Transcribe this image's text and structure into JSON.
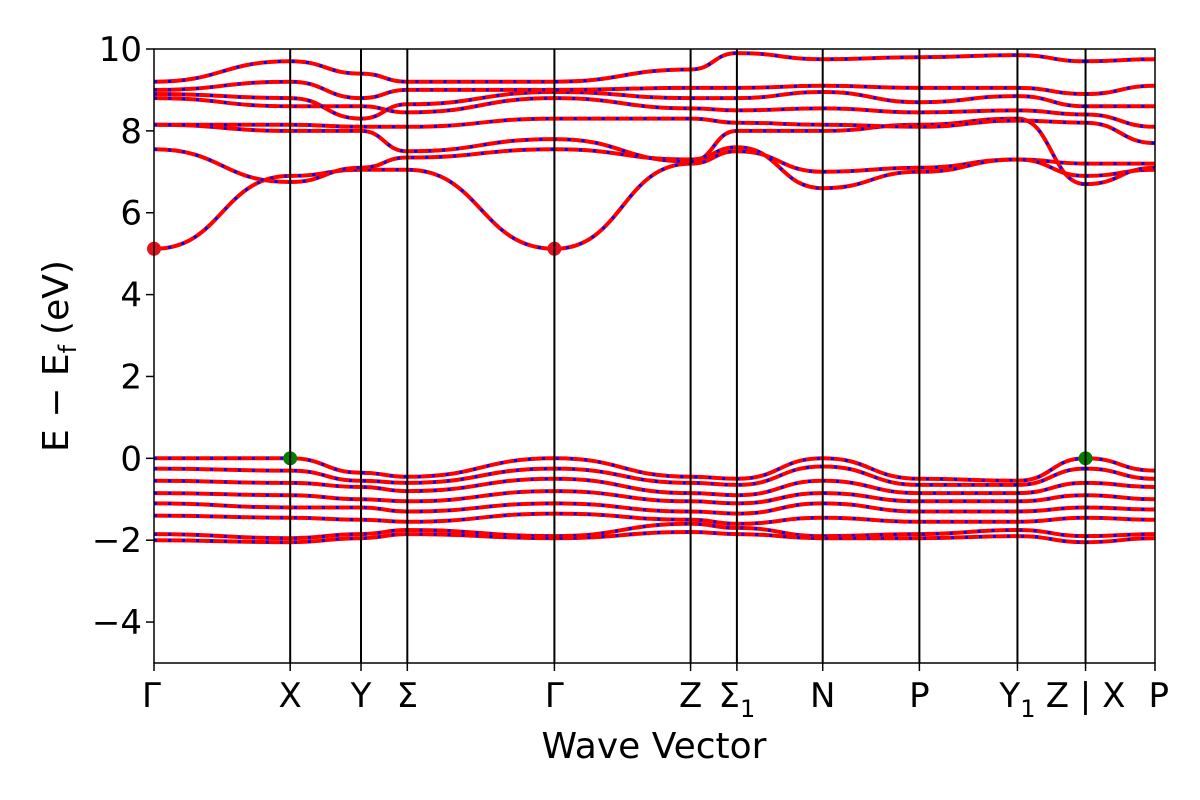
{
  "chart_data": {
    "type": "line",
    "title": "",
    "xlabel": "Wave Vector",
    "ylabel": "E − E",
    "ylabel_subscript": "f",
    "ylabel_unit": "(eV)",
    "ylim": [
      -5,
      10
    ],
    "yticks": [
      -4,
      -2,
      0,
      2,
      4,
      6,
      8,
      10
    ],
    "ytick_labels": [
      "−4",
      "−2",
      "0",
      "2",
      "4",
      "6",
      "8",
      "10"
    ],
    "xlim": [
      0,
      7.35
    ],
    "kpoints": [
      {
        "x": 0.0,
        "label": "Γ",
        "sub": ""
      },
      {
        "x": 1.0,
        "label": "X",
        "sub": ""
      },
      {
        "x": 1.52,
        "label": "Y",
        "sub": ""
      },
      {
        "x": 1.86,
        "label": "Σ",
        "sub": ""
      },
      {
        "x": 2.94,
        "label": "Γ",
        "sub": ""
      },
      {
        "x": 3.94,
        "label": "Z",
        "sub": ""
      },
      {
        "x": 4.28,
        "label": "Σ",
        "sub": "1"
      },
      {
        "x": 4.91,
        "label": "N",
        "sub": ""
      },
      {
        "x": 5.62,
        "label": "P",
        "sub": ""
      },
      {
        "x": 6.34,
        "label": "Y",
        "sub": "1"
      },
      {
        "x": 6.84,
        "label": "Z | X",
        "sub": ""
      },
      {
        "x": 7.35,
        "label": "P",
        "sub": ""
      }
    ],
    "band_break_x": 6.84,
    "colors": {
      "spin_up": "#ff0000",
      "spin_down": "#0000ff",
      "vbm": "#007f00",
      "cbm": "#e0141e"
    },
    "series": [
      {
        "values": [
          5.12,
          6.9,
          7.05,
          7.05,
          5.12,
          7.2,
          7.5,
          7.0,
          7.1,
          7.3,
          7.2,
          7.2
        ]
      },
      {
        "values": [
          7.55,
          6.75,
          7.1,
          7.35,
          7.55,
          7.3,
          7.6,
          6.6,
          7.0,
          7.3,
          6.9,
          7.05
        ]
      },
      {
        "values": [
          8.15,
          8.0,
          8.0,
          7.5,
          7.8,
          7.25,
          8.0,
          8.0,
          8.15,
          8.3,
          6.7,
          7.1
        ]
      },
      {
        "values": [
          8.15,
          8.15,
          8.1,
          8.1,
          8.3,
          8.3,
          8.2,
          8.15,
          8.1,
          8.25,
          8.2,
          7.7
        ]
      },
      {
        "values": [
          8.8,
          8.6,
          8.6,
          8.45,
          8.8,
          8.55,
          8.5,
          8.55,
          8.45,
          8.5,
          8.4,
          8.1
        ]
      },
      {
        "values": [
          8.9,
          8.8,
          8.3,
          8.65,
          8.95,
          8.8,
          8.8,
          8.95,
          8.7,
          8.85,
          8.6,
          8.6
        ]
      },
      {
        "values": [
          9.0,
          9.2,
          8.8,
          9.0,
          9.0,
          9.05,
          9.05,
          9.1,
          9.05,
          9.05,
          8.9,
          9.1
        ]
      },
      {
        "values": [
          9.2,
          9.7,
          9.4,
          9.2,
          9.2,
          9.5,
          9.9,
          9.75,
          9.8,
          9.85,
          9.7,
          9.75
        ]
      },
      {
        "values": [
          0.0,
          0.0,
          -0.35,
          -0.45,
          0.0,
          -0.45,
          -0.5,
          0.0,
          -0.5,
          -0.55,
          0.0,
          -0.3
        ]
      },
      {
        "values": [
          -0.25,
          -0.3,
          -0.55,
          -0.6,
          -0.25,
          -0.6,
          -0.65,
          -0.2,
          -0.65,
          -0.65,
          -0.25,
          -0.5
        ]
      },
      {
        "values": [
          -0.55,
          -0.6,
          -0.7,
          -0.8,
          -0.5,
          -0.85,
          -0.9,
          -0.55,
          -0.85,
          -0.85,
          -0.6,
          -0.7
        ]
      },
      {
        "values": [
          -0.85,
          -0.9,
          -1.0,
          -1.05,
          -0.8,
          -1.05,
          -1.1,
          -0.85,
          -1.05,
          -1.05,
          -0.9,
          -1.0
        ]
      },
      {
        "values": [
          -1.1,
          -1.2,
          -1.2,
          -1.3,
          -1.1,
          -1.3,
          -1.35,
          -1.1,
          -1.3,
          -1.3,
          -1.2,
          -1.25
        ]
      },
      {
        "values": [
          -1.4,
          -1.45,
          -1.5,
          -1.55,
          -1.35,
          -1.5,
          -1.6,
          -1.45,
          -1.55,
          -1.55,
          -1.45,
          -1.5
        ]
      },
      {
        "values": [
          -1.85,
          -1.95,
          -1.85,
          -1.75,
          -1.9,
          -1.6,
          -1.7,
          -1.9,
          -1.85,
          -1.75,
          -1.9,
          -1.85
        ]
      },
      {
        "values": [
          -2.0,
          -2.05,
          -1.95,
          -1.85,
          -1.95,
          -1.8,
          -1.85,
          -1.95,
          -1.95,
          -1.9,
          -2.05,
          -1.95
        ]
      }
    ],
    "markers": [
      {
        "name": "VBM",
        "x": 1.0,
        "y": 0.0,
        "color": "#007f00"
      },
      {
        "name": "VBM",
        "x": 6.84,
        "y": 0.0,
        "color": "#007f00"
      },
      {
        "name": "CBM",
        "x": 0.0,
        "y": 5.12,
        "color": "#e0141e"
      },
      {
        "name": "CBM",
        "x": 2.94,
        "y": 5.12,
        "color": "#e0141e"
      }
    ]
  }
}
